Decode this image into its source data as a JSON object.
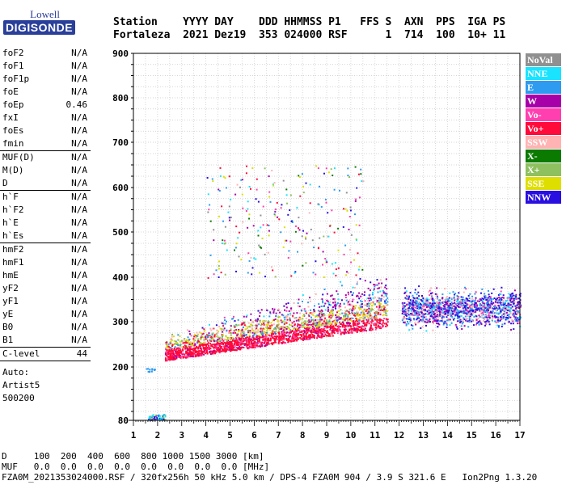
{
  "logo": {
    "line1": "Lowell",
    "line2": "DIGISONDE"
  },
  "header": {
    "line1": "Station    YYYY DAY    DDD HHMMSS P1   FFS S  AXN  PPS  IGA PS",
    "line2": "Fortaleza  2021 Dez19  353 024000 RSF      1  714  100  10+ 11"
  },
  "params": {
    "group1": [
      {
        "name": "foF2",
        "value": "N/A"
      },
      {
        "name": "foF1",
        "value": "N/A"
      },
      {
        "name": "foF1p",
        "value": "N/A"
      },
      {
        "name": "foE",
        "value": "N/A"
      },
      {
        "name": "foEp",
        "value": "0.46"
      },
      {
        "name": "fxI",
        "value": "N/A"
      },
      {
        "name": "foEs",
        "value": "N/A"
      },
      {
        "name": "fmin",
        "value": "N/A"
      }
    ],
    "group2": [
      {
        "name": "MUF(D)",
        "value": "N/A"
      },
      {
        "name": "M(D)",
        "value": "N/A"
      },
      {
        "name": "D",
        "value": "N/A"
      }
    ],
    "group3": [
      {
        "name": "h`F",
        "value": "N/A"
      },
      {
        "name": "h`F2",
        "value": "N/A"
      },
      {
        "name": "h`E",
        "value": "N/A"
      },
      {
        "name": "h`Es",
        "value": "N/A"
      }
    ],
    "group4": [
      {
        "name": "hmF2",
        "value": "N/A"
      },
      {
        "name": "hmF1",
        "value": "N/A"
      },
      {
        "name": "hmE",
        "value": "N/A"
      },
      {
        "name": "yF2",
        "value": "N/A"
      },
      {
        "name": "yF1",
        "value": "N/A"
      },
      {
        "name": "yE",
        "value": "N/A"
      },
      {
        "name": "B0",
        "value": "N/A"
      },
      {
        "name": "B1",
        "value": "N/A"
      }
    ],
    "clevel": {
      "name": "C-level",
      "value": "44"
    },
    "auto": [
      "Auto:",
      "Artist5",
      "500200"
    ]
  },
  "legend": [
    {
      "label": "NoVal",
      "color": "#909090"
    },
    {
      "label": "NNE",
      "color": "#19e3ff"
    },
    {
      "label": "E",
      "color": "#2e9bf0"
    },
    {
      "label": "W",
      "color": "#a800a8"
    },
    {
      "label": "Vo-",
      "color": "#ff3fb0"
    },
    {
      "label": "Vo+",
      "color": "#ff0a3a"
    },
    {
      "label": "SSW",
      "color": "#ffb3b3"
    },
    {
      "label": "X-",
      "color": "#0a7a00"
    },
    {
      "label": "X+",
      "color": "#8fc060"
    },
    {
      "label": "SSE",
      "color": "#dede00"
    },
    {
      "label": "NNW",
      "color": "#2a10e0"
    }
  ],
  "axes": {
    "y_ticks": [
      80,
      200,
      300,
      400,
      500,
      600,
      700,
      800,
      900
    ],
    "x_ticks": [
      1,
      2,
      3,
      4,
      5,
      6,
      7,
      8,
      9,
      10,
      11,
      12,
      13,
      14,
      15,
      16,
      17
    ]
  },
  "footer": {
    "line1": "D     100  200  400  600  800 1000 1500 3000 [km]",
    "line2": "MUF   0.0  0.0  0.0  0.0  0.0  0.0  0.0  0.0 [MHz]",
    "line3": "FZA0M_2021353024000.RSF / 320fx256h 50 kHz 5.0 km / DPS-4 FZA0M 904 / 3.9 S 321.6 E   Ion2Png 1.3.20"
  }
}
